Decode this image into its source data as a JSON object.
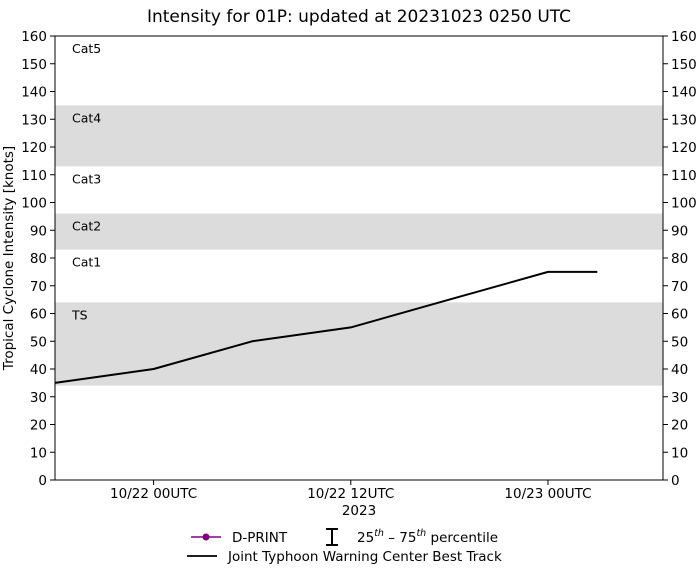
{
  "chart_data": {
    "type": "line",
    "title": "Intensity for 01P: updated at 20231023 0250 UTC",
    "ylabel": "Tropical Cyclone Intensity [knots]",
    "xlabel": "2023",
    "ylim": [
      0,
      160
    ],
    "yticks": [
      0,
      10,
      20,
      30,
      40,
      50,
      60,
      70,
      80,
      90,
      100,
      110,
      120,
      130,
      140,
      150,
      160
    ],
    "xlim_hours": [
      -6,
      31
    ],
    "xticks": [
      {
        "label": "10/22 00UTC",
        "hour": 0
      },
      {
        "label": "10/22 12UTC",
        "hour": 12
      },
      {
        "label": "10/23 00UTC",
        "hour": 24
      }
    ],
    "grid": false,
    "category_bands": [
      {
        "label": "TS",
        "min": 34,
        "max": 64,
        "shaded": true
      },
      {
        "label": "Cat1",
        "min": 64,
        "max": 83,
        "shaded": false
      },
      {
        "label": "Cat2",
        "min": 83,
        "max": 96,
        "shaded": true
      },
      {
        "label": "Cat3",
        "min": 96,
        "max": 113,
        "shaded": false
      },
      {
        "label": "Cat4",
        "min": 113,
        "max": 135,
        "shaded": true
      },
      {
        "label": "Cat5",
        "min": 135,
        "max": 160,
        "shaded": false
      }
    ],
    "series": [
      {
        "name": "Joint Typhoon Warning Center Best Track",
        "color": "#000000",
        "x_hours": [
          -6,
          0,
          6,
          12,
          18,
          24,
          27
        ],
        "x": [
          "10/21 18UTC",
          "10/22 00UTC",
          "10/22 06UTC",
          "10/22 12UTC",
          "10/22 18UTC",
          "10/23 00UTC",
          "10/23 03UTC"
        ],
        "values": [
          35,
          40,
          50,
          55,
          65,
          75,
          75
        ]
      },
      {
        "name": "D-PRINT",
        "color": "#800080",
        "x_hours": [],
        "values": []
      }
    ],
    "legend": {
      "placement": "bottom-center",
      "entries": [
        {
          "label": "D-PRINT",
          "symbol": "purple-line-dot"
        },
        {
          "label_html": "25<sup>th</sup> – 75<sup>th</sup> percentile",
          "label": "25th – 75th percentile",
          "symbol": "errorbar"
        },
        {
          "label": "Joint Typhoon Warning Center Best Track",
          "symbol": "black-line"
        }
      ]
    },
    "colors": {
      "band_fill": "#dcdcdc",
      "dprint": "#800080",
      "best_track": "#000000"
    }
  }
}
